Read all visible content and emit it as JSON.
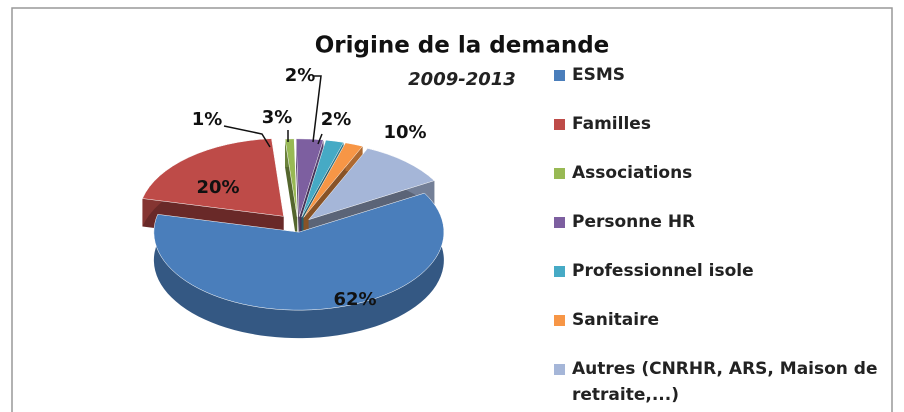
{
  "chart_data": {
    "type": "pie",
    "title": "Origine de la demande",
    "subtitle": "2009-2013",
    "categories": [
      "ESMS",
      "Familles",
      "Associations",
      "Personne HR",
      "Professionnel isole",
      "Sanitaire",
      "Autres (CNRHR, ARS, Maison de retraite,...)"
    ],
    "values": [
      62,
      20,
      1,
      3,
      2,
      2,
      10
    ],
    "value_labels": [
      "62%",
      "20%",
      "1%",
      "3%",
      "2%",
      "2%",
      "10%"
    ],
    "colors": [
      "#4a7ebb",
      "#be4b48",
      "#98b954",
      "#7d5fa0",
      "#46aac5",
      "#f79646",
      "#a5b6d8"
    ],
    "legend": "right"
  }
}
